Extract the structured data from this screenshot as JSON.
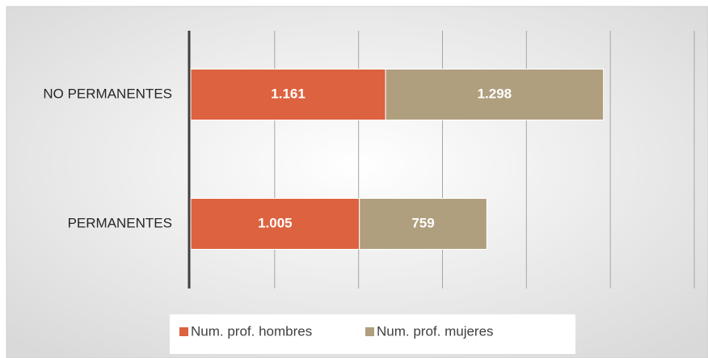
{
  "chart_data": {
    "type": "stacked_barh",
    "categories": [
      "NO PERMANENTES",
      "PERMANENTES"
    ],
    "series": [
      {
        "name": "Num. prof. hombres",
        "color": "#dd6240",
        "values": [
          1161,
          1005
        ],
        "value_labels": [
          "1.161",
          "1.005"
        ]
      },
      {
        "name": "Num. prof. mujeres",
        "color": "#b09f7e",
        "values": [
          1298,
          759
        ],
        "value_labels": [
          "1.298",
          "759"
        ]
      }
    ],
    "xlim": [
      0,
      3000
    ],
    "xticks": [
      0,
      500,
      1000,
      1500,
      2000,
      2500,
      3000
    ],
    "grid": true,
    "legend": "bottom"
  }
}
